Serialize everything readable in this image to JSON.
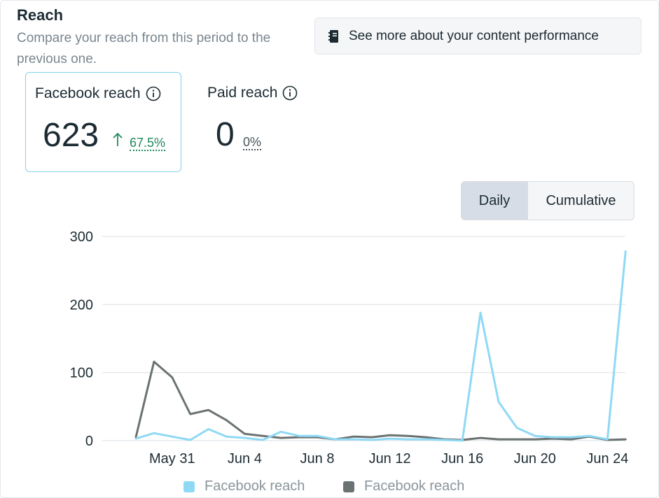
{
  "header": {
    "title": "Reach",
    "subtitle": "Compare your reach from this period to the previous one.",
    "performance_button": "See more about your content performance"
  },
  "metrics": {
    "facebook": {
      "label": "Facebook reach",
      "value": "623",
      "change": "67.5%",
      "trend": "up"
    },
    "paid": {
      "label": "Paid reach",
      "value": "0",
      "change": "0%"
    }
  },
  "toggle": {
    "options": [
      "Daily",
      "Cumulative"
    ],
    "selected": "Daily"
  },
  "colors": {
    "current": "#8fd9f5",
    "previous": "#6b7272",
    "positive": "#1f8a5b",
    "accent_border": "#7fd1ec"
  },
  "chart_data": {
    "type": "line",
    "title": "",
    "xlabel": "",
    "ylabel": "",
    "ylim": [
      0,
      300
    ],
    "yticks": [
      "0",
      "100",
      "200",
      "300"
    ],
    "xtick_labels": [
      {
        "label": "May 31",
        "index": 2
      },
      {
        "label": "Jun 4",
        "index": 6
      },
      {
        "label": "Jun 8",
        "index": 10
      },
      {
        "label": "Jun 12",
        "index": 14
      },
      {
        "label": "Jun 16",
        "index": 18
      },
      {
        "label": "Jun 20",
        "index": 22
      },
      {
        "label": "Jun 24",
        "index": 26
      }
    ],
    "x": [
      "May 29",
      "May 30",
      "May 31",
      "Jun 1",
      "Jun 2",
      "Jun 3",
      "Jun 4",
      "Jun 5",
      "Jun 6",
      "Jun 7",
      "Jun 8",
      "Jun 9",
      "Jun 10",
      "Jun 11",
      "Jun 12",
      "Jun 13",
      "Jun 14",
      "Jun 15",
      "Jun 16",
      "Jun 17",
      "Jun 18",
      "Jun 19",
      "Jun 20",
      "Jun 21",
      "Jun 22",
      "Jun 23",
      "Jun 24",
      "Jun 25"
    ],
    "series": [
      {
        "name": "Facebook reach",
        "color": "#8fd9f5",
        "values": [
          3,
          11,
          6,
          1,
          17,
          6,
          4,
          1,
          13,
          7,
          7,
          2,
          2,
          1,
          3,
          2,
          2,
          1,
          0,
          188,
          57,
          19,
          7,
          5,
          5,
          7,
          2,
          278
        ]
      },
      {
        "name": "Facebook reach",
        "color": "#6b7272",
        "values": [
          5,
          116,
          93,
          39,
          45,
          30,
          10,
          7,
          4,
          5,
          5,
          2,
          6,
          5,
          8,
          7,
          5,
          2,
          1,
          4,
          2,
          2,
          2,
          3,
          2,
          6,
          1,
          2
        ]
      }
    ],
    "legend": [
      {
        "label": "Facebook reach",
        "color": "#8fd9f5"
      },
      {
        "label": "Facebook reach",
        "color": "#6b7272"
      }
    ],
    "legend_position": "bottom"
  }
}
